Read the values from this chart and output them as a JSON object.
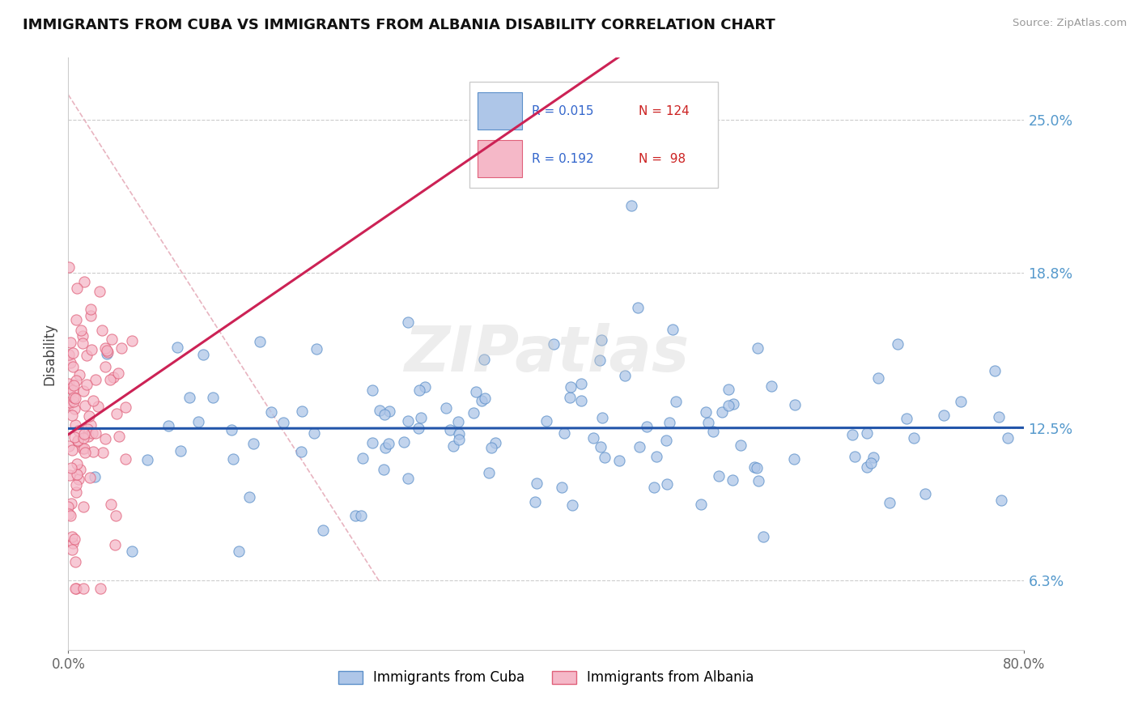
{
  "title": "IMMIGRANTS FROM CUBA VS IMMIGRANTS FROM ALBANIA DISABILITY CORRELATION CHART",
  "source": "Source: ZipAtlas.com",
  "ylabel": "Disability",
  "yticks": [
    6.3,
    12.5,
    18.8,
    25.0
  ],
  "ytick_labels": [
    "6.3%",
    "12.5%",
    "18.8%",
    "25.0%"
  ],
  "xmin": 0.0,
  "xmax": 80.0,
  "ymin": 3.5,
  "ymax": 27.5,
  "cuba_color": "#aec6e8",
  "cuba_edge_color": "#5b8fc9",
  "albania_color": "#f5b8c8",
  "albania_edge_color": "#e0607a",
  "cuba_R": 0.015,
  "cuba_N": 124,
  "albania_R": 0.192,
  "albania_N": 98,
  "trend_cuba_color": "#2255aa",
  "trend_albania_color": "#cc2255",
  "diagonal_color": "#e8b4c0",
  "watermark": "ZIPatlas",
  "grid_color": "#cccccc",
  "axis_color": "#cccccc",
  "ytick_color": "#5599cc",
  "xtick_color": "#666666"
}
